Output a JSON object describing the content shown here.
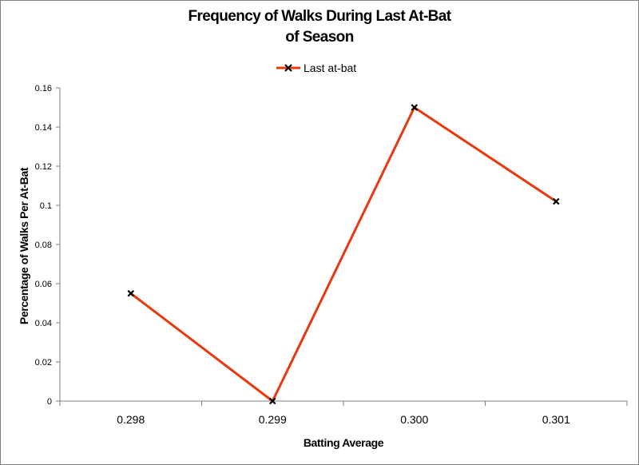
{
  "chart_data": {
    "type": "line",
    "title_line1": "Frequency of Walks During Last At-Bat",
    "title_line2": "of Season",
    "xlabel": "Batting Average",
    "ylabel": "Percentage of Walks Per At-Bat",
    "categories": [
      "0.298",
      "0.299",
      "0.300",
      "0.301"
    ],
    "series": [
      {
        "name": "Last at-bat",
        "values": [
          0.055,
          0.0,
          0.15,
          0.102
        ],
        "color": "#e8380d",
        "marker": "x-marker"
      }
    ],
    "ylim": [
      0,
      0.16
    ],
    "yticks": [
      0,
      0.02,
      0.04,
      0.06,
      0.08,
      0.1,
      0.12,
      0.14,
      0.16
    ],
    "grid": false,
    "legend_position": "top"
  }
}
